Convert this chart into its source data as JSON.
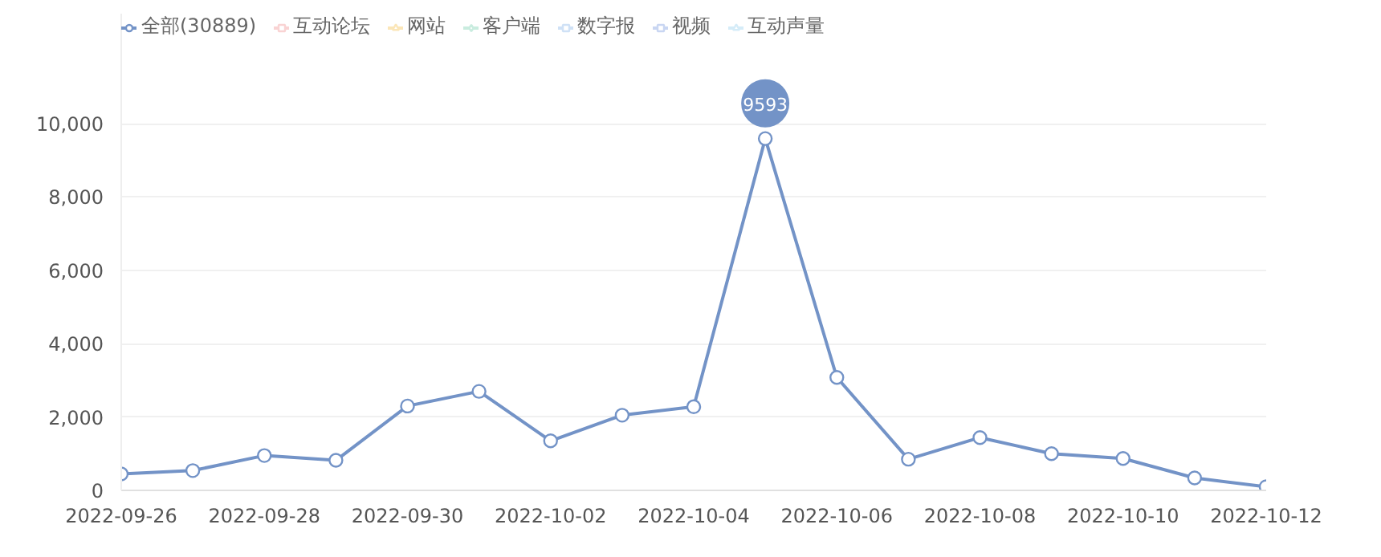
{
  "chart_data": {
    "type": "line",
    "x": [
      "2022-09-26",
      "2022-09-27",
      "2022-09-28",
      "2022-09-29",
      "2022-09-30",
      "2022-10-01",
      "2022-10-02",
      "2022-10-03",
      "2022-10-04",
      "2022-10-05",
      "2022-10-06",
      "2022-10-07",
      "2022-10-08",
      "2022-10-09",
      "2022-10-10",
      "2022-10-11",
      "2022-10-12"
    ],
    "series": [
      {
        "name": "全部(30889)",
        "color": "#7393c7",
        "marker": "circle",
        "values": [
          450,
          540,
          950,
          820,
          2300,
          2700,
          1350,
          2050,
          2280,
          9593,
          3080,
          850,
          1440,
          1000,
          870,
          340,
          100
        ]
      },
      {
        "name": "互动论坛",
        "color": "#f9d3d3",
        "marker": "square",
        "values": [
          null,
          null,
          null,
          null,
          null,
          null,
          null,
          null,
          null,
          null,
          null,
          null,
          null,
          null,
          null,
          null,
          null
        ]
      },
      {
        "name": "网站",
        "color": "#fbe6b8",
        "marker": "triangle",
        "values": [
          null,
          null,
          null,
          null,
          null,
          null,
          null,
          null,
          null,
          null,
          null,
          null,
          null,
          null,
          null,
          null,
          null
        ]
      },
      {
        "name": "客户端",
        "color": "#c9ecdf",
        "marker": "diamond",
        "values": [
          null,
          null,
          null,
          null,
          null,
          null,
          null,
          null,
          null,
          null,
          null,
          null,
          null,
          null,
          null,
          null,
          null
        ]
      },
      {
        "name": "数字报",
        "color": "#cfe1f6",
        "marker": "square",
        "values": [
          null,
          null,
          null,
          null,
          null,
          null,
          null,
          null,
          null,
          null,
          null,
          null,
          null,
          null,
          null,
          null,
          null
        ]
      },
      {
        "name": "视频",
        "color": "#c9d6f2",
        "marker": "square",
        "values": [
          null,
          null,
          null,
          null,
          null,
          null,
          null,
          null,
          null,
          null,
          null,
          null,
          null,
          null,
          null,
          null,
          null
        ]
      },
      {
        "name": "互动声量",
        "color": "#d5ecf8",
        "marker": "triangle",
        "values": [
          null,
          null,
          null,
          null,
          null,
          null,
          null,
          null,
          null,
          null,
          null,
          null,
          null,
          null,
          null,
          null,
          null
        ]
      }
    ],
    "ylim": [
      0,
      13000
    ],
    "yticks": [
      0,
      {
        "value": 2000,
        "label": "2,000"
      },
      {
        "value": 4000,
        "label": "4,000"
      },
      {
        "value": 6000,
        "label": "6,000"
      },
      {
        "value": 8000,
        "label": "8,000"
      },
      {
        "value": 10000,
        "label": "10,000"
      }
    ],
    "xlim": [
      "2022-09-26",
      "2022-10-12"
    ],
    "xticks": [
      "2022-09-26",
      "2022-09-28",
      "2022-09-30",
      "2022-10-02",
      "2022-10-04",
      "2022-10-06",
      "2022-10-08",
      "2022-10-10",
      "2022-10-12"
    ],
    "annotations": [
      {
        "text": "9593",
        "x": "2022-10-05",
        "y": 9593
      }
    ],
    "grid": "y",
    "legend": "top left",
    "line_style": "solid"
  }
}
